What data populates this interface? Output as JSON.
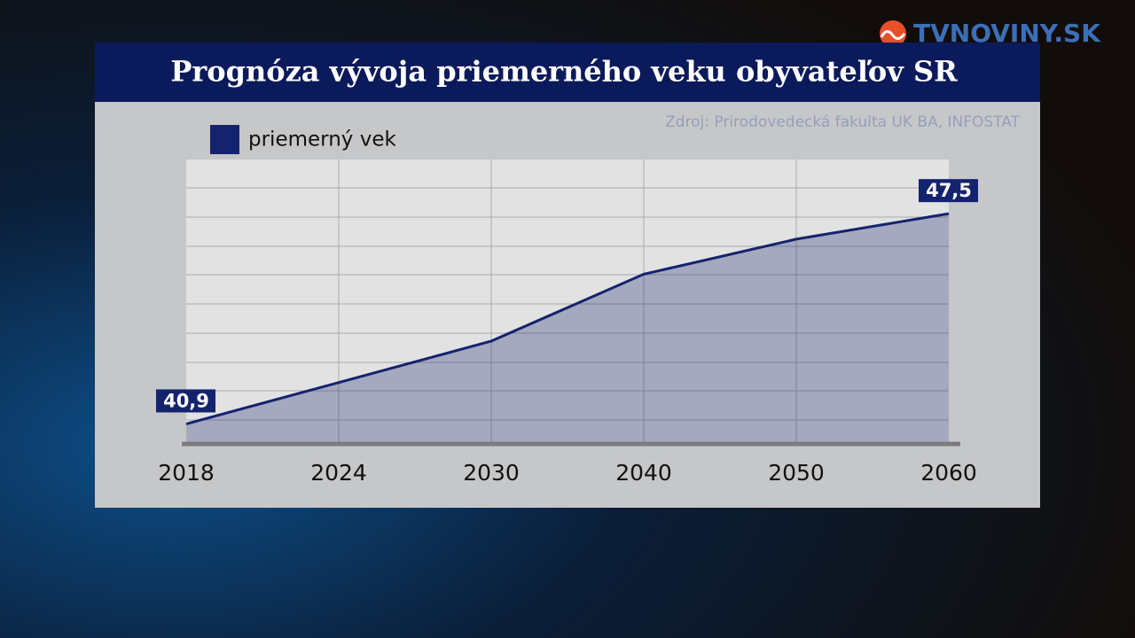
{
  "logo": "TVNOVINY.SK",
  "chart_data": {
    "type": "line",
    "title": "Prognóza vývoja priemerného veku obyvateľov SR",
    "source": "Zdroj: Prirodovedecká fakulta UK BA, INFOSTAT",
    "series_name": "priemerný vek",
    "categories": [
      "2018",
      "2024",
      "2030",
      "2040",
      "2050",
      "2060"
    ],
    "values": [
      40.9,
      42.2,
      43.5,
      45.6,
      46.7,
      47.5
    ],
    "value_labels": [
      "40,9",
      null,
      null,
      null,
      null,
      "47,5"
    ],
    "color": "#14236e",
    "area": true,
    "ylim": [
      40.3,
      49.2
    ]
  }
}
